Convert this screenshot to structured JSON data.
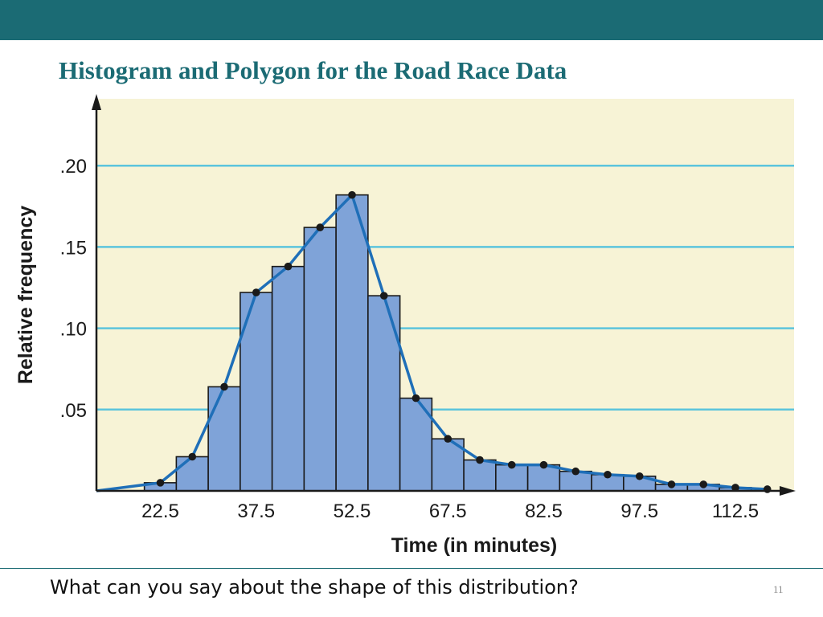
{
  "slide": {
    "title": "Histogram and Polygon for the Road Race Data",
    "question": "What can you say about the shape of this distribution?",
    "page_number": "11"
  },
  "colors": {
    "header_bar": "#1b6b74",
    "title": "#1b6b74",
    "plot_background": "#f7f3d6",
    "gridline": "#5cc4dc",
    "bar_fill": "#7fa3d8",
    "bar_stroke": "#1a1a1a",
    "polygon_line": "#1f6fb8",
    "point": "#1a1a1a"
  },
  "chart_data": {
    "type": "bar",
    "overlay": "frequency polygon (line)",
    "xlabel": "Time (in minutes)",
    "ylabel": "Relative frequency",
    "xlim": [
      12.5,
      123.5
    ],
    "ylim": [
      0,
      0.22
    ],
    "bin_width": 5,
    "grid": "horizontal",
    "x_ticks": [
      22.5,
      37.5,
      52.5,
      67.5,
      82.5,
      97.5,
      112.5
    ],
    "x_tick_labels": [
      "22.5",
      "37.5",
      "52.5",
      "67.5",
      "82.5",
      "97.5",
      "112.5"
    ],
    "y_ticks": [
      0.05,
      0.1,
      0.15,
      0.2
    ],
    "y_tick_labels": [
      ".05",
      ".10",
      ".15",
      ".20"
    ],
    "bin_midpoints": [
      22.5,
      27.5,
      32.5,
      37.5,
      42.5,
      47.5,
      52.5,
      57.5,
      62.5,
      67.5,
      72.5,
      77.5,
      82.5,
      87.5,
      92.5,
      97.5,
      102.5,
      107.5,
      112.5
    ],
    "values": [
      0.005,
      0.021,
      0.064,
      0.122,
      0.138,
      0.162,
      0.182,
      0.12,
      0.057,
      0.032,
      0.019,
      0.016,
      0.016,
      0.012,
      0.01,
      0.009,
      0.004,
      0.004,
      0.002
    ],
    "polygon": {
      "x": [
        12.5,
        22.5,
        27.5,
        32.5,
        37.5,
        42.5,
        47.5,
        52.5,
        57.5,
        62.5,
        67.5,
        72.5,
        77.5,
        82.5,
        87.5,
        92.5,
        97.5,
        102.5,
        107.5,
        112.5,
        117.5
      ],
      "y": [
        0,
        0.005,
        0.021,
        0.064,
        0.122,
        0.138,
        0.162,
        0.182,
        0.12,
        0.057,
        0.032,
        0.019,
        0.016,
        0.016,
        0.012,
        0.01,
        0.009,
        0.004,
        0.004,
        0.002,
        0.001
      ]
    }
  }
}
